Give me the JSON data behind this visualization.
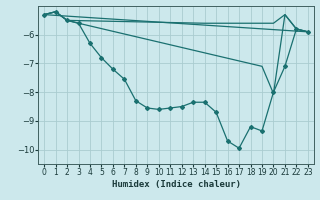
{
  "xlabel": "Humidex (Indice chaleur)",
  "bg_color": "#cce8ec",
  "grid_color": "#aaccd0",
  "line_color": "#1a7070",
  "xlim": [
    -0.5,
    23.5
  ],
  "ylim": [
    -10.5,
    -5.0
  ],
  "yticks": [
    -10,
    -9,
    -8,
    -7,
    -6
  ],
  "xticks": [
    0,
    1,
    2,
    3,
    4,
    5,
    6,
    7,
    8,
    9,
    10,
    11,
    12,
    13,
    14,
    15,
    16,
    17,
    18,
    19,
    20,
    21,
    22,
    23
  ],
  "line1": {
    "x": [
      0,
      1,
      2,
      14,
      20,
      21,
      22,
      23
    ],
    "y": [
      -5.3,
      -5.2,
      -5.5,
      -5.6,
      -5.6,
      -5.3,
      -5.8,
      -5.9
    ]
  },
  "line2": {
    "x": [
      0,
      1,
      2,
      3,
      19,
      20,
      21,
      22,
      23
    ],
    "y": [
      -5.3,
      -5.2,
      -5.5,
      -5.6,
      -7.1,
      -8.05,
      -5.3,
      -5.8,
      -5.9
    ]
  },
  "line3": {
    "x": [
      0,
      1,
      2,
      3,
      4,
      5,
      6,
      7,
      8,
      9,
      10,
      11,
      12,
      13,
      14,
      15,
      16,
      17,
      18,
      19,
      20,
      21,
      22,
      23
    ],
    "y": [
      -5.3,
      -5.2,
      -5.5,
      -5.6,
      -6.3,
      -6.8,
      -7.2,
      -7.55,
      -8.3,
      -8.55,
      -8.6,
      -8.55,
      -8.5,
      -8.35,
      -8.35,
      -8.7,
      -9.7,
      -9.95,
      -9.2,
      -9.35,
      -8.0,
      -7.1,
      -5.8,
      -5.9
    ]
  },
  "line4": {
    "x": [
      0,
      23
    ],
    "y": [
      -5.3,
      -5.9
    ]
  }
}
